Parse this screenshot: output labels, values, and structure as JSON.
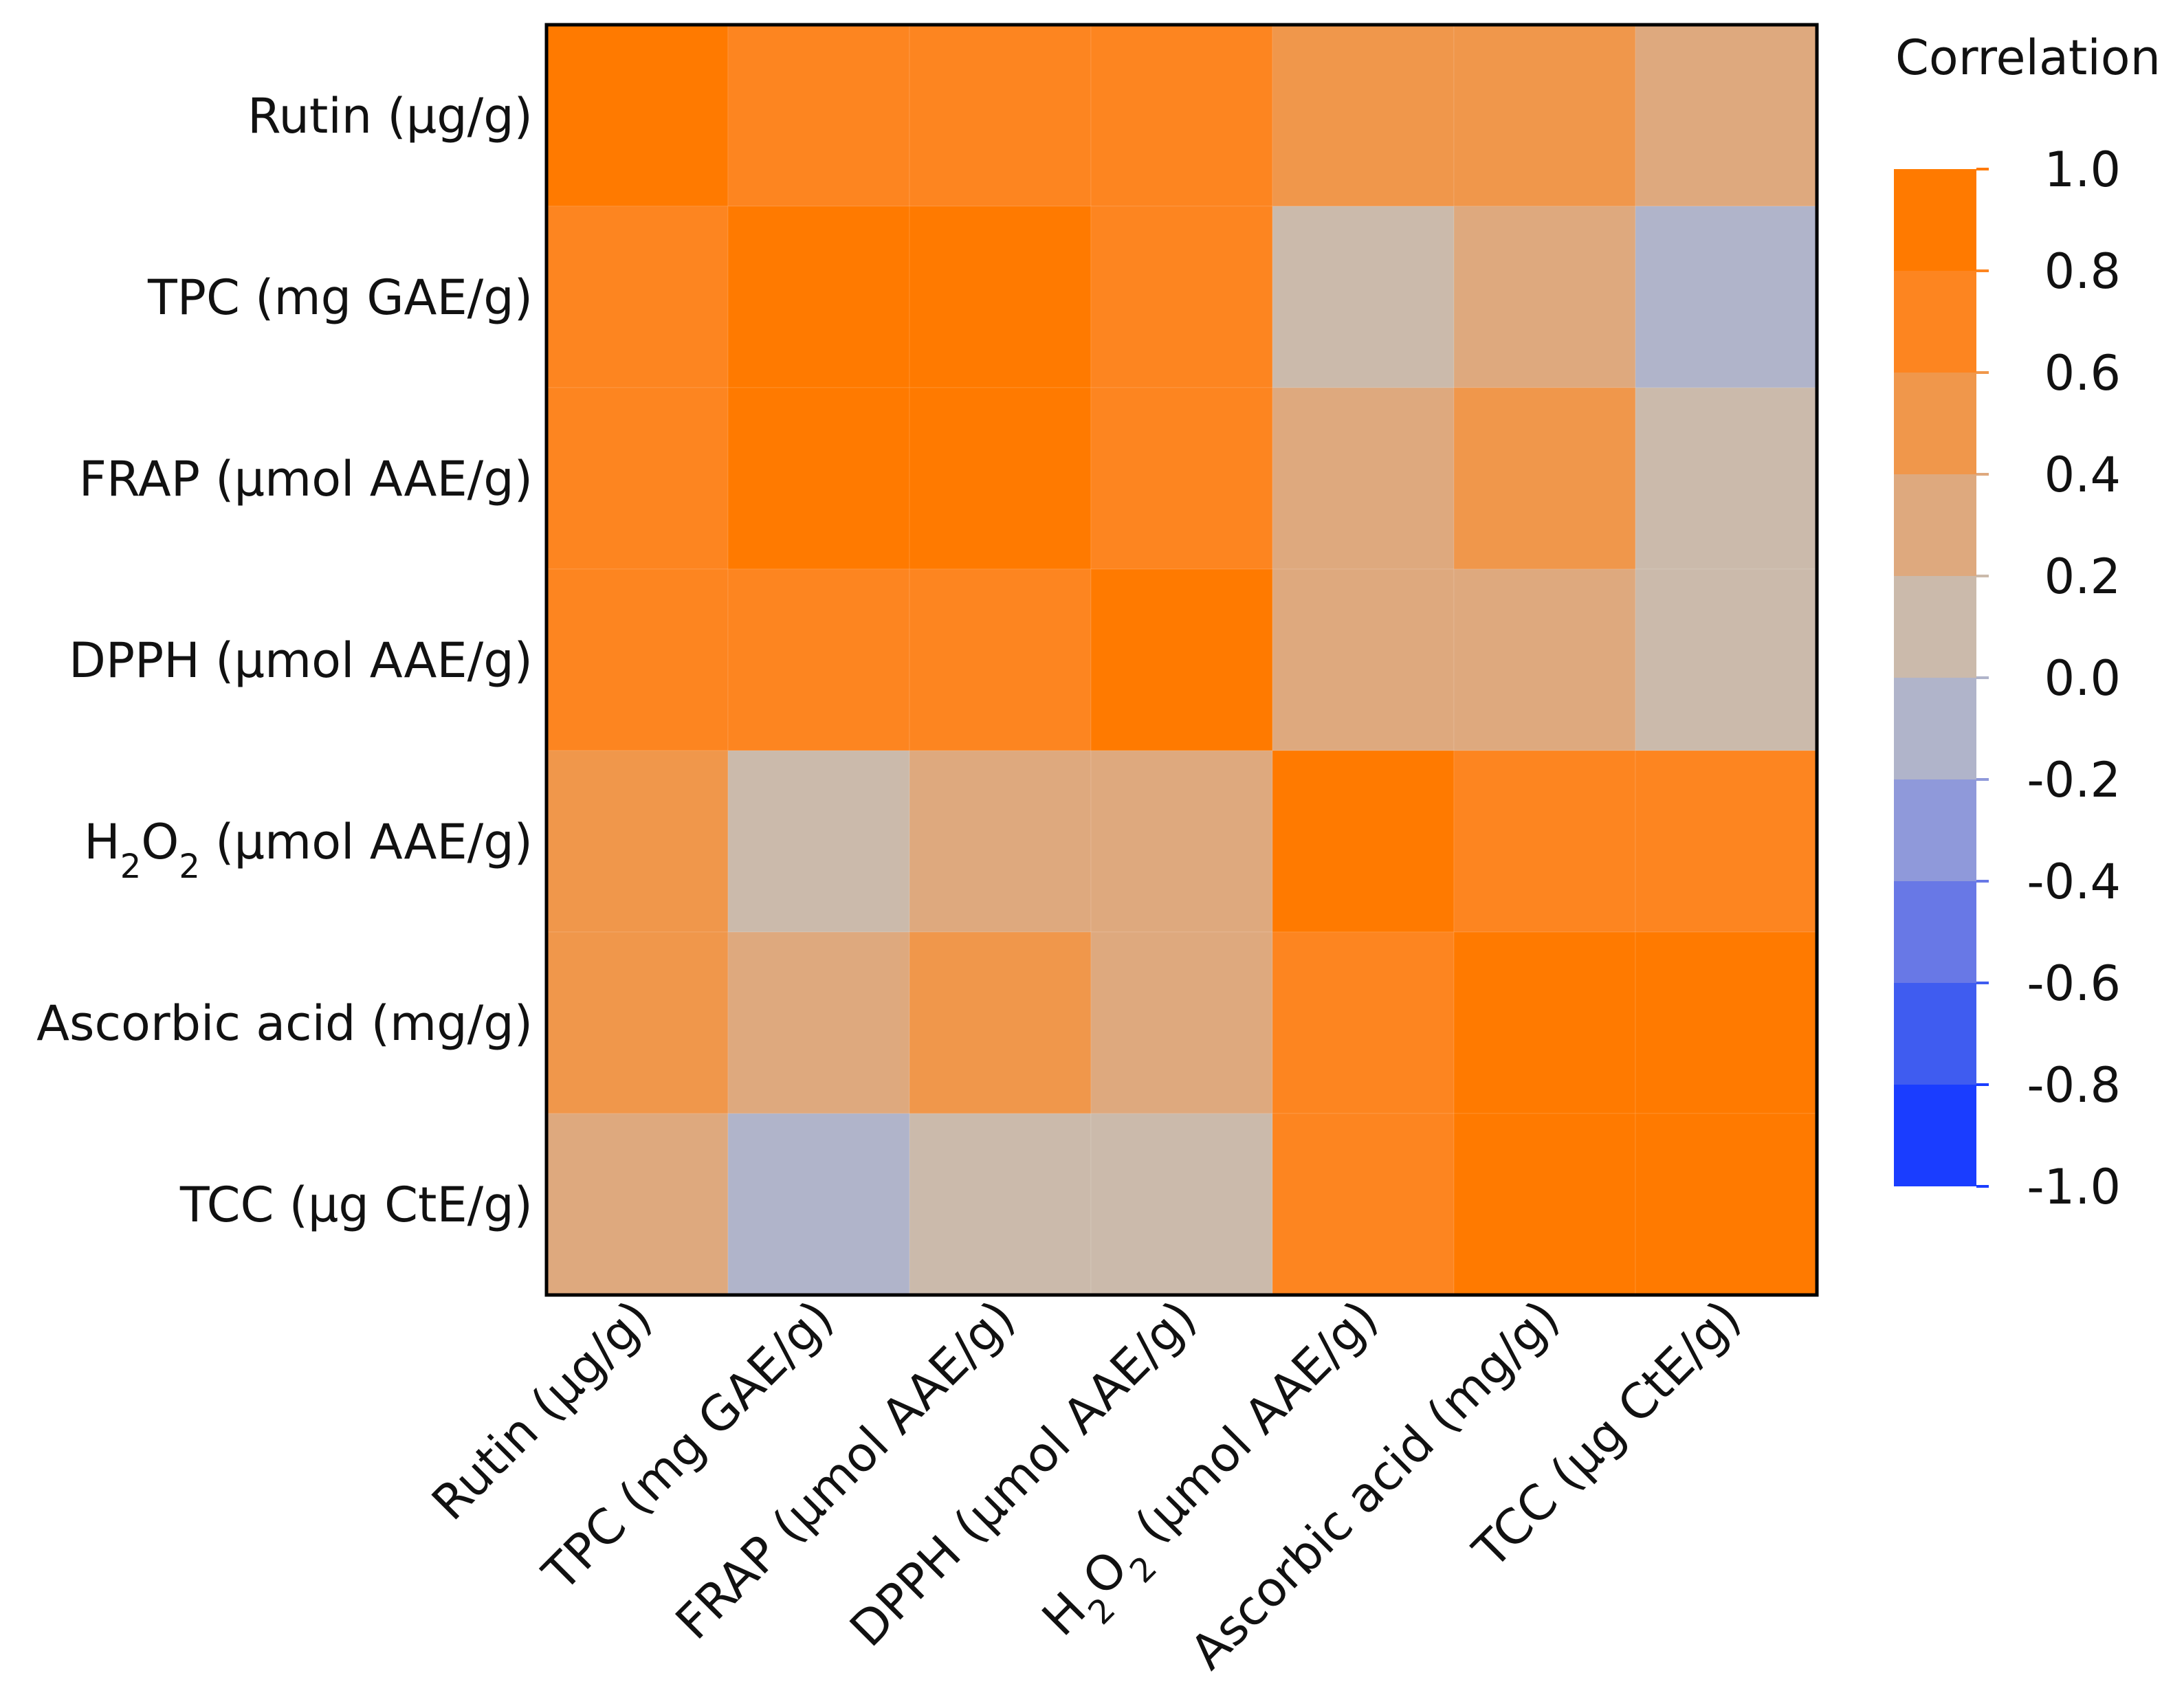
{
  "chart_data": {
    "type": "heatmap",
    "title": "",
    "xlabel": "",
    "ylabel": "",
    "row_labels": [
      {
        "pre": "Rutin (µg/g)",
        "sub": "",
        "mid": "",
        "sub2": "",
        "post": ""
      },
      {
        "pre": "TPC (mg GAE/g)",
        "sub": "",
        "mid": "",
        "sub2": "",
        "post": ""
      },
      {
        "pre": "FRAP (µmol AAE/g)",
        "sub": "",
        "mid": "",
        "sub2": "",
        "post": ""
      },
      {
        "pre": "DPPH (µmol AAE/g)",
        "sub": "",
        "mid": "",
        "sub2": "",
        "post": ""
      },
      {
        "pre": "H",
        "sub": "2",
        "mid": "O",
        "sub2": "2",
        "post": " (µmol AAE/g)"
      },
      {
        "pre": "Ascorbic acid (mg/g)",
        "sub": "",
        "mid": "",
        "sub2": "",
        "post": ""
      },
      {
        "pre": "TCC (µg CtE/g)",
        "sub": "",
        "mid": "",
        "sub2": "",
        "post": ""
      }
    ],
    "col_labels": [
      {
        "pre": "Rutin (µg/g)",
        "sub": "",
        "mid": "",
        "sub2": "",
        "post": ""
      },
      {
        "pre": "TPC (mg GAE/g)",
        "sub": "",
        "mid": "",
        "sub2": "",
        "post": ""
      },
      {
        "pre": "FRAP (µmol AAE/g)",
        "sub": "",
        "mid": "",
        "sub2": "",
        "post": ""
      },
      {
        "pre": "DPPH (µmol AAE/g)",
        "sub": "",
        "mid": "",
        "sub2": "",
        "post": ""
      },
      {
        "pre": "H",
        "sub": "2",
        "mid": "O",
        "sub2": "2",
        "post": " (µmol AAE/g)"
      },
      {
        "pre": "Ascorbic acid (mg/g)",
        "sub": "",
        "mid": "",
        "sub2": "",
        "post": ""
      },
      {
        "pre": "TCC (µg CtE/g)",
        "sub": "",
        "mid": "",
        "sub2": "",
        "post": ""
      }
    ],
    "values": [
      [
        1.0,
        0.7,
        0.7,
        0.7,
        0.5,
        0.5,
        0.3
      ],
      [
        0.7,
        1.0,
        0.9,
        0.7,
        0.1,
        0.3,
        -0.1
      ],
      [
        0.7,
        0.9,
        1.0,
        0.7,
        0.3,
        0.5,
        0.1
      ],
      [
        0.7,
        0.7,
        0.7,
        1.0,
        0.3,
        0.3,
        0.1
      ],
      [
        0.5,
        0.1,
        0.3,
        0.3,
        1.0,
        0.7,
        0.7
      ],
      [
        0.5,
        0.3,
        0.5,
        0.3,
        0.7,
        1.0,
        0.9
      ],
      [
        0.3,
        -0.1,
        0.1,
        0.1,
        0.7,
        0.9,
        1.0
      ]
    ],
    "legend": {
      "title": "Correlation",
      "range": [
        -1.0,
        1.0
      ],
      "ticks": [
        "1.0",
        "0.8",
        "0.6",
        "0.4",
        "0.2",
        "0.0",
        "-0.2",
        "-0.4",
        "-0.6",
        "-0.8",
        "-1.0"
      ],
      "placement": "right"
    },
    "color_bins": [
      {
        "from": -1.0,
        "to": -0.8,
        "color": "#1a3dff"
      },
      {
        "from": -0.8,
        "to": -0.6,
        "color": "#3f5cf0"
      },
      {
        "from": -0.6,
        "to": -0.4,
        "color": "#6878e6"
      },
      {
        "from": -0.4,
        "to": -0.2,
        "color": "#8f99da"
      },
      {
        "from": -0.2,
        "to": 0.0,
        "color": "#b0b4ca"
      },
      {
        "from": 0.0,
        "to": 0.2,
        "color": "#cbbaab"
      },
      {
        "from": 0.2,
        "to": 0.4,
        "color": "#dea97e"
      },
      {
        "from": 0.4,
        "to": 0.6,
        "color": "#f0974b"
      },
      {
        "from": 0.6,
        "to": 0.8,
        "color": "#fd8520"
      },
      {
        "from": 0.8,
        "to": 1.0,
        "color": "#ff7a00"
      }
    ]
  }
}
